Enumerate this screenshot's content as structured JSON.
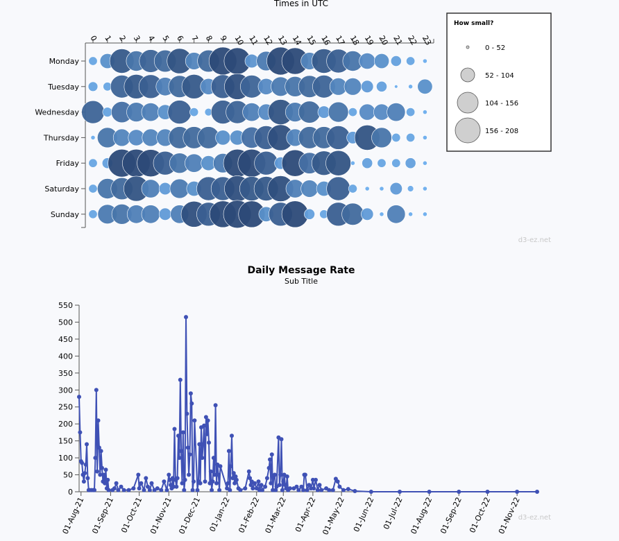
{
  "punchcard": {
    "title": "Times in UTC",
    "watermark": "d3-ez.net",
    "legend": {
      "title": "How small?",
      "items": [
        "0 - 52",
        "52 - 104",
        "104 - 156",
        "156 - 208"
      ],
      "fill": "#cfcfcf",
      "stroke": "#555555"
    }
  },
  "line_chart": {
    "title": "Daily Message Rate",
    "subtitle": "Sub Title",
    "watermark": "d3-ez.net",
    "color": "#3f51b5"
  },
  "chart_data": [
    {
      "type": "scatter",
      "title": "Times in UTC",
      "x_categories": [
        "0",
        "1",
        "2",
        "3",
        "4",
        "5",
        "6",
        "7",
        "8",
        "9",
        "10",
        "11",
        "12",
        "13",
        "14",
        "15",
        "16",
        "17",
        "18",
        "19",
        "20",
        "21",
        "22",
        "23"
      ],
      "y_categories": [
        "Monday",
        "Tuesday",
        "Wednesday",
        "Thursday",
        "Friday",
        "Saturday",
        "Sunday"
      ],
      "size_range": [
        0,
        208
      ],
      "values": [
        [
          20,
          60,
          160,
          110,
          140,
          130,
          170,
          80,
          130,
          208,
          190,
          50,
          100,
          208,
          190,
          80,
          160,
          150,
          110,
          70,
          60,
          30,
          20,
          5
        ],
        [
          25,
          20,
          140,
          160,
          150,
          90,
          130,
          160,
          70,
          150,
          180,
          140,
          70,
          100,
          110,
          130,
          140,
          80,
          80,
          40,
          30,
          3,
          5,
          60
        ],
        [
          140,
          25,
          120,
          100,
          90,
          60,
          150,
          20,
          15,
          150,
          140,
          90,
          70,
          170,
          100,
          130,
          40,
          110,
          20,
          70,
          70,
          90,
          20,
          5
        ],
        [
          5,
          110,
          80,
          70,
          80,
          80,
          130,
          130,
          130,
          60,
          60,
          120,
          150,
          180,
          80,
          130,
          130,
          150,
          40,
          170,
          110,
          20,
          20,
          5
        ],
        [
          20,
          30,
          208,
          208,
          200,
          150,
          110,
          90,
          60,
          100,
          208,
          208,
          150,
          40,
          190,
          120,
          160,
          170,
          5,
          30,
          20,
          20,
          30,
          5
        ],
        [
          20,
          110,
          130,
          170,
          90,
          40,
          100,
          60,
          150,
          150,
          180,
          160,
          160,
          180,
          90,
          80,
          60,
          150,
          20,
          5,
          5,
          40,
          10,
          5
        ],
        [
          20,
          100,
          110,
          90,
          90,
          40,
          90,
          180,
          150,
          190,
          208,
          190,
          60,
          150,
          190,
          30,
          20,
          150,
          130,
          40,
          5,
          90,
          5,
          5
        ]
      ]
    },
    {
      "type": "line",
      "title": "Daily Message Rate",
      "subtitle": "Sub Title",
      "ylim": [
        0,
        550
      ],
      "yticks": [
        0,
        50,
        100,
        150,
        200,
        250,
        300,
        350,
        400,
        450,
        500,
        550
      ],
      "xlim": [
        "2021-07-30",
        "2022-11-22"
      ],
      "xticks": [
        "01-Aug-21",
        "01-Sep-21",
        "01-Oct-21",
        "01-Nov-21",
        "01-Dec-21",
        "01-Jan-22",
        "01-Feb-22",
        "01-Mar-22",
        "01-Apr-22",
        "01-May-22",
        "01-Jun-22",
        "01-Jul-22",
        "01-Aug-22",
        "01-Sep-22",
        "01-Oct-22",
        "01-Nov-22"
      ],
      "points": [
        [
          "2021-07-30",
          280
        ],
        [
          "2021-07-31",
          175
        ],
        [
          "2021-08-01",
          90
        ],
        [
          "2021-08-02",
          85
        ],
        [
          "2021-08-03",
          50
        ],
        [
          "2021-08-04",
          30
        ],
        [
          "2021-08-05",
          55
        ],
        [
          "2021-08-06",
          80
        ],
        [
          "2021-08-07",
          140
        ],
        [
          "2021-08-08",
          40
        ],
        [
          "2021-08-09",
          5
        ],
        [
          "2021-08-10",
          5
        ],
        [
          "2021-08-12",
          5
        ],
        [
          "2021-08-14",
          5
        ],
        [
          "2021-08-15",
          5
        ],
        [
          "2021-08-16",
          100
        ],
        [
          "2021-08-17",
          300
        ],
        [
          "2021-08-18",
          60
        ],
        [
          "2021-08-19",
          210
        ],
        [
          "2021-08-20",
          130
        ],
        [
          "2021-08-21",
          50
        ],
        [
          "2021-08-22",
          120
        ],
        [
          "2021-08-23",
          70
        ],
        [
          "2021-08-24",
          30
        ],
        [
          "2021-08-25",
          50
        ],
        [
          "2021-08-26",
          25
        ],
        [
          "2021-08-27",
          65
        ],
        [
          "2021-08-28",
          10
        ],
        [
          "2021-08-29",
          35
        ],
        [
          "2021-08-30",
          5
        ],
        [
          "2021-09-03",
          5
        ],
        [
          "2021-09-05",
          10
        ],
        [
          "2021-09-07",
          25
        ],
        [
          "2021-09-09",
          5
        ],
        [
          "2021-09-12",
          15
        ],
        [
          "2021-09-15",
          5
        ],
        [
          "2021-09-20",
          5
        ],
        [
          "2021-09-25",
          10
        ],
        [
          "2021-09-30",
          50
        ],
        [
          "2021-10-01",
          10
        ],
        [
          "2021-10-03",
          25
        ],
        [
          "2021-10-06",
          5
        ],
        [
          "2021-10-08",
          40
        ],
        [
          "2021-10-10",
          15
        ],
        [
          "2021-10-12",
          5
        ],
        [
          "2021-10-14",
          25
        ],
        [
          "2021-10-17",
          5
        ],
        [
          "2021-10-20",
          10
        ],
        [
          "2021-10-24",
          5
        ],
        [
          "2021-10-27",
          30
        ],
        [
          "2021-10-30",
          5
        ],
        [
          "2021-11-01",
          50
        ],
        [
          "2021-11-02",
          35
        ],
        [
          "2021-11-03",
          20
        ],
        [
          "2021-11-04",
          10
        ],
        [
          "2021-11-05",
          40
        ],
        [
          "2021-11-06",
          15
        ],
        [
          "2021-11-07",
          185
        ],
        [
          "2021-11-08",
          35
        ],
        [
          "2021-11-09",
          15
        ],
        [
          "2021-11-10",
          40
        ],
        [
          "2021-11-11",
          165
        ],
        [
          "2021-11-12",
          100
        ],
        [
          "2021-11-13",
          330
        ],
        [
          "2021-11-14",
          120
        ],
        [
          "2021-11-15",
          25
        ],
        [
          "2021-11-16",
          175
        ],
        [
          "2021-11-17",
          5
        ],
        [
          "2021-11-18",
          35
        ],
        [
          "2021-11-19",
          515
        ],
        [
          "2021-11-20",
          230
        ],
        [
          "2021-11-21",
          130
        ],
        [
          "2021-11-22",
          50
        ],
        [
          "2021-11-23",
          110
        ],
        [
          "2021-11-24",
          290
        ],
        [
          "2021-11-25",
          260
        ],
        [
          "2021-11-26",
          5
        ],
        [
          "2021-11-27",
          30
        ],
        [
          "2021-11-28",
          210
        ],
        [
          "2021-12-01",
          5
        ],
        [
          "2021-12-02",
          30
        ],
        [
          "2021-12-03",
          140
        ],
        [
          "2021-12-04",
          25
        ],
        [
          "2021-12-05",
          190
        ],
        [
          "2021-12-06",
          100
        ],
        [
          "2021-12-07",
          140
        ],
        [
          "2021-12-08",
          195
        ],
        [
          "2021-12-09",
          30
        ],
        [
          "2021-12-10",
          220
        ],
        [
          "2021-12-11",
          170
        ],
        [
          "2021-12-12",
          210
        ],
        [
          "2021-12-13",
          145
        ],
        [
          "2021-12-14",
          25
        ],
        [
          "2021-12-15",
          60
        ],
        [
          "2021-12-16",
          5
        ],
        [
          "2021-12-17",
          30
        ],
        [
          "2021-12-18",
          100
        ],
        [
          "2021-12-19",
          50
        ],
        [
          "2021-12-20",
          255
        ],
        [
          "2021-12-21",
          25
        ],
        [
          "2021-12-22",
          80
        ],
        [
          "2021-12-23",
          50
        ],
        [
          "2021-12-24",
          5
        ],
        [
          "2021-12-25",
          75
        ],
        [
          "2022-01-01",
          10
        ],
        [
          "2022-01-02",
          25
        ],
        [
          "2022-01-03",
          120
        ],
        [
          "2022-01-04",
          5
        ],
        [
          "2022-01-05",
          75
        ],
        [
          "2022-01-06",
          165
        ],
        [
          "2022-01-07",
          40
        ],
        [
          "2022-01-08",
          55
        ],
        [
          "2022-01-09",
          25
        ],
        [
          "2022-01-10",
          45
        ],
        [
          "2022-01-11",
          35
        ],
        [
          "2022-01-13",
          10
        ],
        [
          "2022-01-15",
          5
        ],
        [
          "2022-01-20",
          10
        ],
        [
          "2022-01-24",
          60
        ],
        [
          "2022-01-25",
          40
        ],
        [
          "2022-01-26",
          20
        ],
        [
          "2022-01-27",
          30
        ],
        [
          "2022-01-28",
          10
        ],
        [
          "2022-01-30",
          25
        ],
        [
          "2022-02-01",
          10
        ],
        [
          "2022-02-03",
          30
        ],
        [
          "2022-02-04",
          5
        ],
        [
          "2022-02-06",
          20
        ],
        [
          "2022-02-07",
          5
        ],
        [
          "2022-02-10",
          15
        ],
        [
          "2022-02-12",
          40
        ],
        [
          "2022-02-14",
          70
        ],
        [
          "2022-02-15",
          95
        ],
        [
          "2022-02-16",
          25
        ],
        [
          "2022-02-17",
          110
        ],
        [
          "2022-02-18",
          5
        ],
        [
          "2022-02-19",
          45
        ],
        [
          "2022-02-20",
          50
        ],
        [
          "2022-02-21",
          5
        ],
        [
          "2022-02-22",
          15
        ],
        [
          "2022-02-24",
          160
        ],
        [
          "2022-02-25",
          20
        ],
        [
          "2022-02-26",
          50
        ],
        [
          "2022-02-27",
          155
        ],
        [
          "2022-02-28",
          5
        ],
        [
          "2022-03-01",
          30
        ],
        [
          "2022-03-02",
          50
        ],
        [
          "2022-03-03",
          20
        ],
        [
          "2022-03-04",
          10
        ],
        [
          "2022-03-05",
          45
        ],
        [
          "2022-03-06",
          5
        ],
        [
          "2022-03-08",
          10
        ],
        [
          "2022-03-12",
          10
        ],
        [
          "2022-03-15",
          15
        ],
        [
          "2022-03-17",
          5
        ],
        [
          "2022-03-20",
          15
        ],
        [
          "2022-03-22",
          5
        ],
        [
          "2022-03-23",
          50
        ],
        [
          "2022-03-24",
          50
        ],
        [
          "2022-03-26",
          5
        ],
        [
          "2022-03-28",
          20
        ],
        [
          "2022-03-30",
          10
        ],
        [
          "2022-04-01",
          35
        ],
        [
          "2022-04-02",
          10
        ],
        [
          "2022-04-04",
          35
        ],
        [
          "2022-04-06",
          5
        ],
        [
          "2022-04-08",
          20
        ],
        [
          "2022-04-10",
          5
        ],
        [
          "2022-04-15",
          10
        ],
        [
          "2022-04-18",
          5
        ],
        [
          "2022-04-22",
          5
        ],
        [
          "2022-04-25",
          38
        ],
        [
          "2022-04-27",
          30
        ],
        [
          "2022-04-29",
          15
        ],
        [
          "2022-05-03",
          5
        ],
        [
          "2022-05-08",
          8
        ],
        [
          "2022-05-15",
          2
        ],
        [
          "2022-06-01",
          0
        ],
        [
          "2022-07-01",
          0
        ],
        [
          "2022-08-01",
          0
        ],
        [
          "2022-09-01",
          0
        ],
        [
          "2022-10-01",
          0
        ],
        [
          "2022-11-01",
          0
        ],
        [
          "2022-11-22",
          0
        ]
      ]
    }
  ]
}
